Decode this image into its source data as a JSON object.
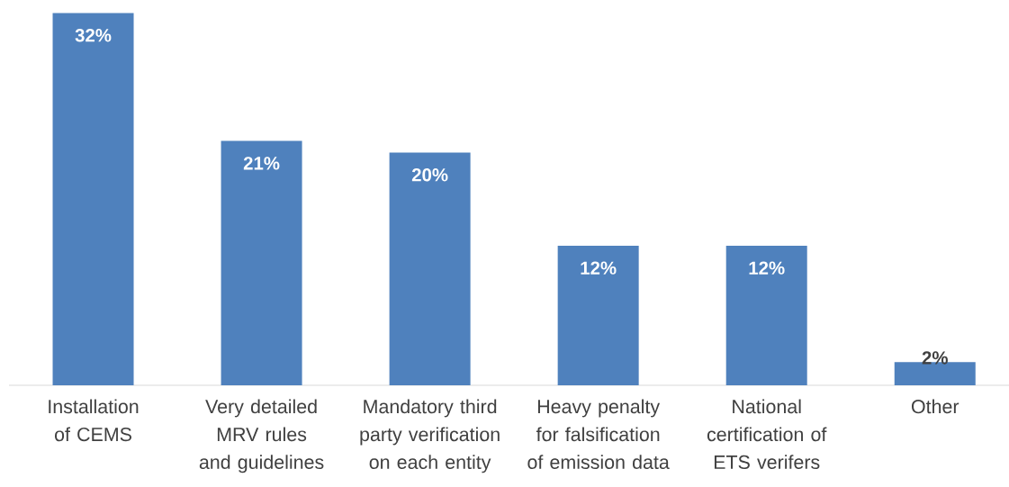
{
  "chart_data": {
    "type": "bar",
    "categories": [
      "Installation of CEMS",
      "Very detailed MRV rules and guidelines",
      "Mandatory third party verification on each entity",
      "Heavy penalty for falsification of emission data",
      "National certification of ETS verifers",
      "Other"
    ],
    "values": [
      32,
      21,
      20,
      12,
      12,
      2
    ],
    "value_labels": [
      "32%",
      "21%",
      "20%",
      "12%",
      "12%",
      "2%"
    ],
    "color": "#4f81bd"
  }
}
